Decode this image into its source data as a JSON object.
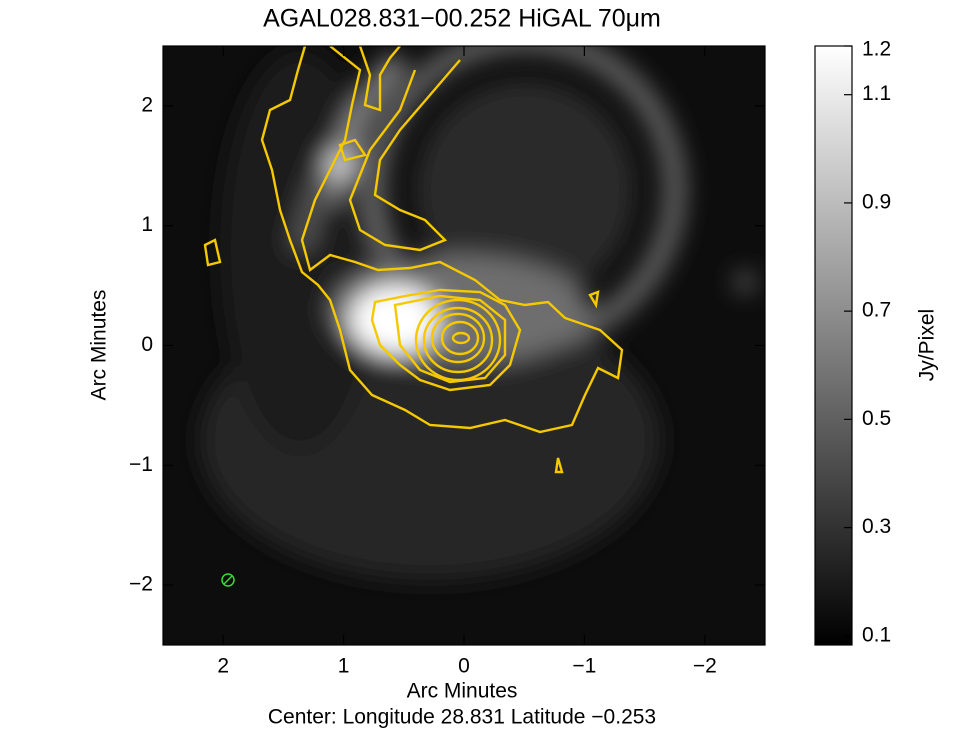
{
  "chart_data": {
    "type": "image",
    "title": "AGAL028.831−00.252 HiGAL 70μm",
    "xlabel": "Arc Minutes",
    "ylabel": "Arc Minutes",
    "footnote": "Center:  Longitude 28.831 Latitude −0.253",
    "xlim": [
      2.5,
      -2.5
    ],
    "ylim": [
      -2.5,
      2.5
    ],
    "xticks": [
      2,
      1,
      0,
      {
        "value": -1,
        "label": "−1"
      },
      {
        "value": -2,
        "label": "−2"
      }
    ],
    "yticks": [
      {
        "value": -2,
        "label": "−2"
      },
      {
        "value": -1,
        "label": "−1"
      },
      0,
      1,
      2
    ],
    "colorbar": {
      "label": "Jy/Pixel",
      "lim": [
        0.083,
        1.19
      ],
      "ticks": [
        0.1,
        0.3,
        0.5,
        0.7,
        0.9,
        1.1,
        {
          "value": 1.19,
          "label": "1.2"
        }
      ]
    },
    "contour_color": "#f5c800"
  }
}
